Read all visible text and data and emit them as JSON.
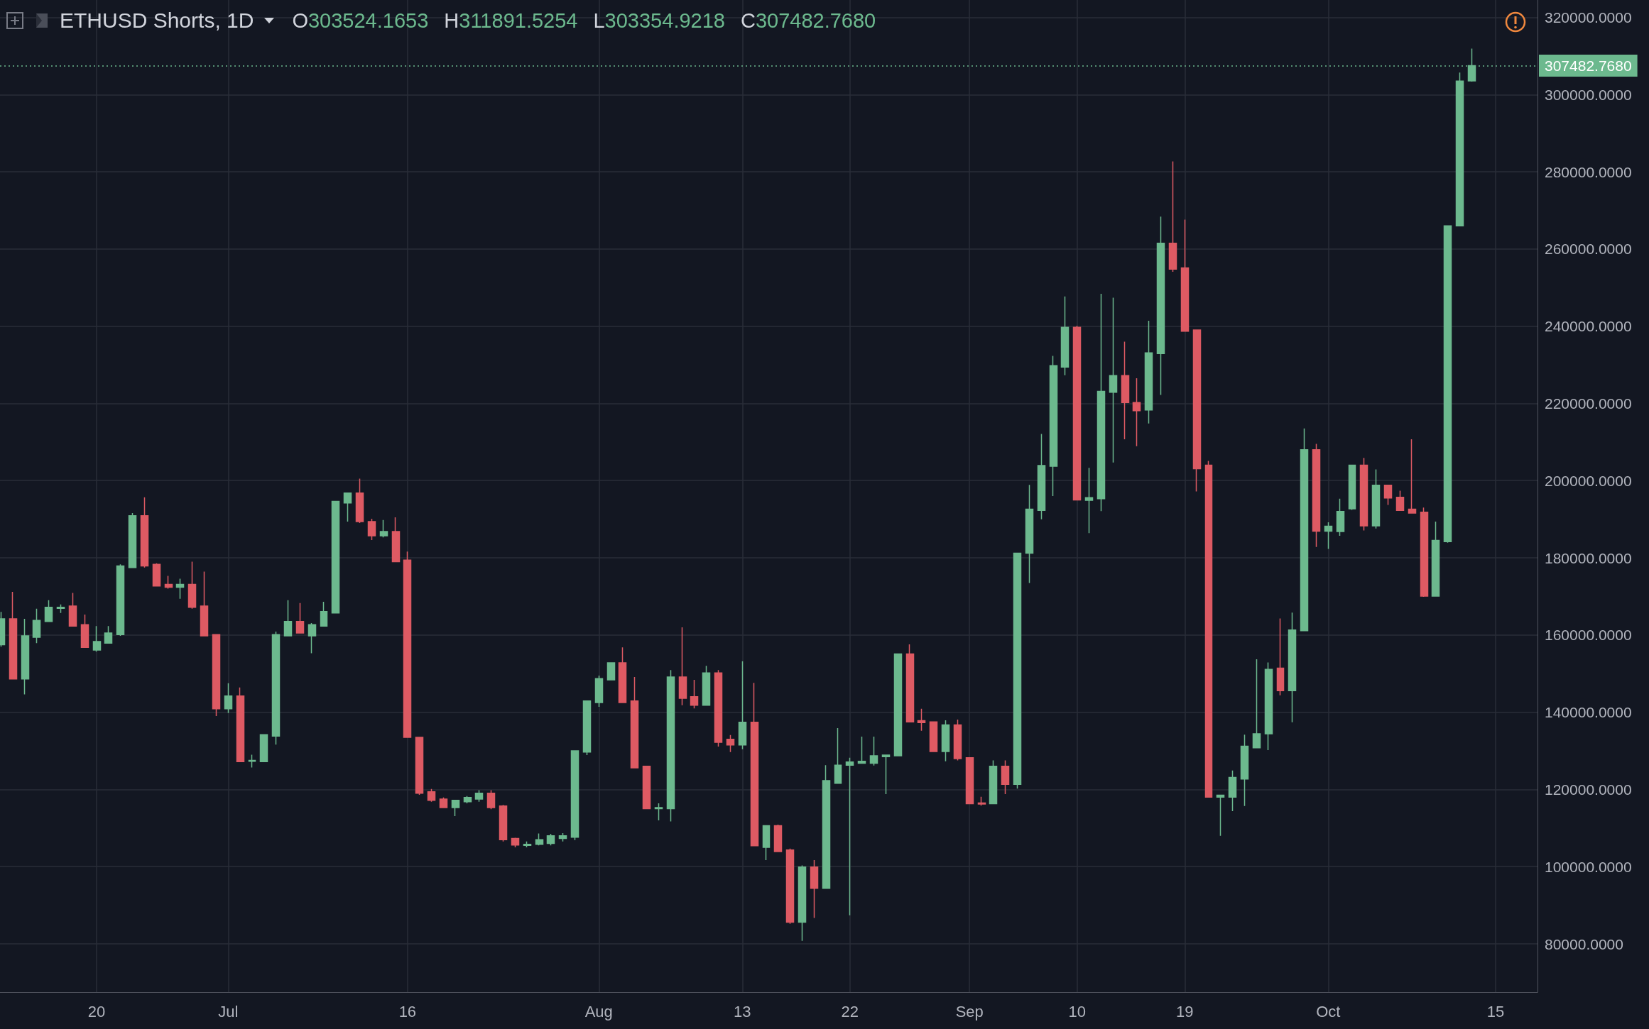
{
  "chart_data": {
    "type": "candlestick",
    "title": "ETHUSD Shorts, 1D",
    "annotations": [
      "O303524.1653",
      "H311891.5254",
      "L303354.9218",
      "C307482.7680"
    ],
    "x": [
      "--06-12",
      "--06-13",
      "--06-14",
      "--06-15",
      "--06-16",
      "--06-17",
      "--06-18",
      "--06-19",
      "--06-20",
      "--06-21",
      "--06-22",
      "--06-23",
      "--06-24",
      "--06-25",
      "--06-26",
      "--06-27",
      "--06-28",
      "--06-29",
      "--06-30",
      "--07-01",
      "--07-02",
      "--07-03",
      "--07-04",
      "--07-05",
      "--07-06",
      "--07-07",
      "--07-08",
      "--07-09",
      "--07-10",
      "--07-11",
      "--07-12",
      "--07-13",
      "--07-14",
      "--07-15",
      "--07-16",
      "--07-17",
      "--07-18",
      "--07-19",
      "--07-20",
      "--07-21",
      "--07-22",
      "--07-23",
      "--07-24",
      "--07-25",
      "--07-26",
      "--07-27",
      "--07-28",
      "--07-29",
      "--07-30",
      "--07-31",
      "--08-01",
      "--08-02",
      "--08-03",
      "--08-04",
      "--08-05",
      "--08-06",
      "--08-07",
      "--08-08",
      "--08-09",
      "--08-10",
      "--08-11",
      "--08-12",
      "--08-13",
      "--08-14",
      "--08-15",
      "--08-16",
      "--08-17",
      "--08-18",
      "--08-19",
      "--08-20",
      "--08-21",
      "--08-22",
      "--08-23",
      "--08-24",
      "--08-25",
      "--08-26",
      "--08-27",
      "--08-28",
      "--08-29",
      "--08-30",
      "--08-31",
      "--09-01",
      "--09-02",
      "--09-03",
      "--09-04",
      "--09-05",
      "--09-06",
      "--09-07",
      "--09-08",
      "--09-09",
      "--09-10",
      "--09-11",
      "--09-12",
      "--09-13",
      "--09-14",
      "--09-15",
      "--09-16",
      "--09-17",
      "--09-18",
      "--09-19",
      "--09-20",
      "--09-21",
      "--09-22",
      "--09-23",
      "--09-24",
      "--09-25",
      "--09-26",
      "--09-27",
      "--09-28",
      "--09-29",
      "--09-30",
      "--10-01",
      "--10-02",
      "--10-03",
      "--10-04",
      "--10-05",
      "--10-06",
      "--10-07",
      "--10-08",
      "--10-09",
      "--10-10",
      "--10-11",
      "--10-12",
      "--10-13"
    ],
    "ohlc": [
      [
        157500,
        166000,
        157000,
        164200
      ],
      [
        164200,
        171200,
        148600,
        148600
      ],
      [
        148600,
        164200,
        144600,
        159800
      ],
      [
        159400,
        166800,
        157900,
        163800
      ],
      [
        163500,
        169000,
        163500,
        167200
      ],
      [
        166900,
        167900,
        165700,
        167200
      ],
      [
        167500,
        170900,
        162300,
        162300
      ],
      [
        162700,
        165300,
        156800,
        156800
      ],
      [
        156100,
        162300,
        155700,
        158300
      ],
      [
        157900,
        162300,
        157900,
        160500
      ],
      [
        160100,
        178300,
        159800,
        177900
      ],
      [
        177500,
        191600,
        177500,
        190900
      ],
      [
        190900,
        195700,
        177500,
        177900
      ],
      [
        178300,
        178600,
        172700,
        172700
      ],
      [
        173100,
        175300,
        172000,
        172400
      ],
      [
        172400,
        174600,
        169400,
        173100
      ],
      [
        173100,
        179000,
        166800,
        167200
      ],
      [
        167500,
        176400,
        159800,
        159800
      ],
      [
        160100,
        160100,
        139000,
        140900
      ],
      [
        140900,
        147500,
        139800,
        144200
      ],
      [
        144200,
        146400,
        127200,
        127200
      ],
      [
        127300,
        129000,
        125700,
        127500
      ],
      [
        127200,
        134200,
        127200,
        134200
      ],
      [
        133800,
        160900,
        131600,
        160100
      ],
      [
        159800,
        169000,
        159800,
        163500
      ],
      [
        163500,
        168300,
        160500,
        160500
      ],
      [
        159800,
        163100,
        155300,
        162700
      ],
      [
        162300,
        168600,
        162300,
        166100
      ],
      [
        165700,
        194600,
        165700,
        194600
      ],
      [
        194200,
        196800,
        189400,
        196800
      ],
      [
        196800,
        200500,
        189000,
        189400
      ],
      [
        189400,
        190100,
        184600,
        185700
      ],
      [
        185700,
        189800,
        185300,
        186800
      ],
      [
        186800,
        190500,
        179000,
        179000
      ],
      [
        179400,
        181600,
        133500,
        133500
      ],
      [
        133500,
        133500,
        118600,
        119000
      ],
      [
        119400,
        120100,
        116800,
        117200
      ],
      [
        117500,
        117900,
        115300,
        115300
      ],
      [
        115300,
        117200,
        113100,
        117200
      ],
      [
        116800,
        118300,
        116400,
        117900
      ],
      [
        117500,
        119800,
        116800,
        119000
      ],
      [
        119000,
        119800,
        114900,
        115300
      ],
      [
        115700,
        116000,
        106500,
        107000
      ],
      [
        107300,
        107500,
        105000,
        105600
      ],
      [
        105500,
        106500,
        105000,
        105800
      ],
      [
        105800,
        108600,
        105500,
        107000
      ],
      [
        106000,
        108500,
        105500,
        108000
      ],
      [
        107300,
        108700,
        106500,
        108000
      ],
      [
        107600,
        130000,
        106900,
        130000
      ],
      [
        129700,
        142900,
        128900,
        142900
      ],
      [
        142500,
        149500,
        141400,
        148700
      ],
      [
        148400,
        152800,
        148400,
        152800
      ],
      [
        152800,
        156800,
        142500,
        142500
      ],
      [
        142900,
        149100,
        125600,
        125600
      ],
      [
        126000,
        126000,
        115000,
        115000
      ],
      [
        115000,
        116400,
        112000,
        115300
      ],
      [
        115000,
        150900,
        111700,
        149100
      ],
      [
        149100,
        162000,
        141800,
        143600
      ],
      [
        144000,
        148400,
        141000,
        141800
      ],
      [
        141800,
        152000,
        141800,
        150200
      ],
      [
        150200,
        150900,
        131100,
        132200
      ],
      [
        133000,
        134100,
        129700,
        131500
      ],
      [
        131500,
        153200,
        130400,
        137400
      ],
      [
        137400,
        147600,
        105400,
        105400
      ],
      [
        105000,
        110600,
        101700,
        110600
      ],
      [
        110600,
        110900,
        103900,
        103900
      ],
      [
        104300,
        104700,
        85200,
        85600
      ],
      [
        85600,
        100300,
        80800,
        99900
      ],
      [
        99900,
        101700,
        86700,
        94400
      ],
      [
        94400,
        126300,
        94400,
        122300
      ],
      [
        121600,
        135900,
        121600,
        126300
      ],
      [
        126300,
        128200,
        87400,
        127100
      ],
      [
        126800,
        133700,
        126800,
        127300
      ],
      [
        126800,
        133700,
        126200,
        128700
      ],
      [
        128500,
        128900,
        118800,
        128900
      ],
      [
        128700,
        155100,
        128700,
        155100
      ],
      [
        155100,
        157600,
        137500,
        137500
      ],
      [
        137800,
        140900,
        135200,
        137300
      ],
      [
        137500,
        137500,
        129800,
        129800
      ],
      [
        129800,
        137900,
        127300,
        136700
      ],
      [
        136700,
        138100,
        127500,
        128000
      ],
      [
        128200,
        128200,
        116300,
        116300
      ],
      [
        116500,
        118100,
        115800,
        116200
      ],
      [
        116300,
        127500,
        116300,
        126000
      ],
      [
        126000,
        127500,
        118800,
        121300
      ],
      [
        121300,
        181200,
        120200,
        181200
      ],
      [
        181200,
        198900,
        173500,
        192600
      ],
      [
        192300,
        212100,
        190000,
        203900
      ],
      [
        203700,
        232300,
        196000,
        229800
      ],
      [
        229400,
        247700,
        227300,
        239700
      ],
      [
        239700,
        240100,
        195000,
        195000
      ],
      [
        194900,
        203300,
        186400,
        195600
      ],
      [
        195300,
        248400,
        192100,
        223100
      ],
      [
        222900,
        247400,
        204700,
        227200
      ],
      [
        227200,
        236000,
        210700,
        220200
      ],
      [
        220200,
        226500,
        208900,
        218100
      ],
      [
        218300,
        241400,
        214800,
        233100
      ],
      [
        232900,
        268400,
        222200,
        261500
      ],
      [
        261500,
        282700,
        254100,
        254800
      ],
      [
        255100,
        267600,
        238700,
        238700
      ],
      [
        239000,
        239000,
        197200,
        203100
      ],
      [
        204000,
        205100,
        118000,
        118000
      ],
      [
        118000,
        118500,
        108000,
        118500
      ],
      [
        118000,
        124900,
        114400,
        123100
      ],
      [
        122700,
        134200,
        115700,
        131200
      ],
      [
        130800,
        153700,
        130800,
        134400
      ],
      [
        134400,
        152900,
        130200,
        151100
      ],
      [
        151400,
        164300,
        144400,
        145600
      ],
      [
        145600,
        165800,
        137400,
        161300
      ],
      [
        161100,
        213500,
        161100,
        208000
      ],
      [
        208000,
        209500,
        182800,
        186900
      ],
      [
        186900,
        189200,
        182300,
        188200
      ],
      [
        186800,
        195300,
        185700,
        192000
      ],
      [
        192700,
        204000,
        192400,
        204000
      ],
      [
        204000,
        205900,
        187100,
        188300
      ],
      [
        188300,
        202900,
        187600,
        198800
      ],
      [
        198800,
        198800,
        193700,
        195500
      ],
      [
        195700,
        197400,
        192300,
        192300
      ],
      [
        192600,
        210700,
        191600,
        191600
      ],
      [
        191800,
        193000,
        169900,
        170100
      ],
      [
        170100,
        189400,
        170100,
        184500
      ],
      [
        184200,
        266000,
        183900,
        266000
      ],
      [
        266000,
        305700,
        266000,
        303500
      ],
      [
        303524.1653,
        311891.5254,
        303354.9218,
        307482.768
      ]
    ],
    "xlim": [
      "--06-11T22:00",
      "--10-18T12:00"
    ],
    "xticks": [
      {
        "value": "--06-20",
        "label": "20"
      },
      {
        "value": "--07-01",
        "label": "Jul"
      },
      {
        "value": "--07-16",
        "label": "16"
      },
      {
        "value": "--08-01",
        "label": "Aug"
      },
      {
        "value": "--08-13",
        "label": "13"
      },
      {
        "value": "--08-22",
        "label": "22"
      },
      {
        "value": "--09-01",
        "label": "Sep"
      },
      {
        "value": "--09-10",
        "label": "10"
      },
      {
        "value": "--09-19",
        "label": "19"
      },
      {
        "value": "--10-01",
        "label": "Oct"
      },
      {
        "value": "--10-15",
        "label": "15"
      }
    ],
    "ylim": [
      67500,
      324500
    ],
    "yticks": [
      {
        "value": 80000,
        "label": "80000.0000"
      },
      {
        "value": 100000,
        "label": "100000.0000"
      },
      {
        "value": 120000,
        "label": "120000.0000"
      },
      {
        "value": 140000,
        "label": "140000.0000"
      },
      {
        "value": 160000,
        "label": "160000.0000"
      },
      {
        "value": 180000,
        "label": "180000.0000"
      },
      {
        "value": 200000,
        "label": "200000.0000"
      },
      {
        "value": 220000,
        "label": "220000.0000"
      },
      {
        "value": 240000,
        "label": "240000.0000"
      },
      {
        "value": 260000,
        "label": "260000.0000"
      },
      {
        "value": 280000,
        "label": "280000.0000"
      },
      {
        "value": 300000,
        "label": "300000.0000"
      },
      {
        "value": 320000,
        "label": "320000.0000"
      }
    ],
    "grid": true,
    "ref_lines": [
      {
        "axis": "y",
        "value": 307482.768,
        "label": "307482.7680",
        "color": "#6cb98e",
        "line_style": "dotted"
      }
    ]
  }
}
